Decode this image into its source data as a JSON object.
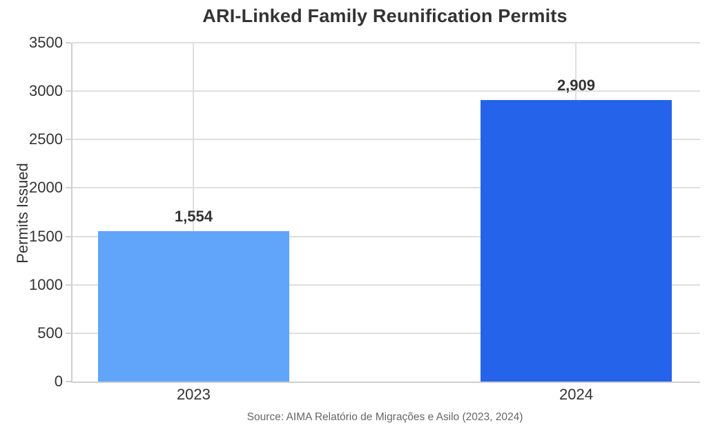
{
  "page": {
    "title": "ARI-Linked Family Reunification Permits",
    "source_note": "Source: AIMA Relatório de Migrações e Asilo (2023, 2024)"
  },
  "colors": {
    "bar_2023": "#60a5fa",
    "bar_2024": "#2563eb",
    "gridline": "#dedede",
    "axis_line": "#cfcfcf",
    "text": "#333333",
    "muted_text": "#666666",
    "background": "#ffffff"
  },
  "chart_data": {
    "type": "bar",
    "title": "ARI-Linked Family Reunification Permits",
    "xlabel": "",
    "ylabel": "Permits Issued",
    "categories": [
      "2023",
      "2024"
    ],
    "values": [
      1554,
      2909
    ],
    "value_labels": [
      "1,554",
      "2,909"
    ],
    "bar_colors": [
      "#60a5fa",
      "#2563eb"
    ],
    "ylim": [
      0,
      3500
    ],
    "yticks": [
      0,
      500,
      1000,
      1500,
      2000,
      2500,
      3000,
      3500
    ],
    "grid": true,
    "legend_position": "none",
    "source": "Source: AIMA Relatório de Migrações e Asilo (2023, 2024)"
  }
}
